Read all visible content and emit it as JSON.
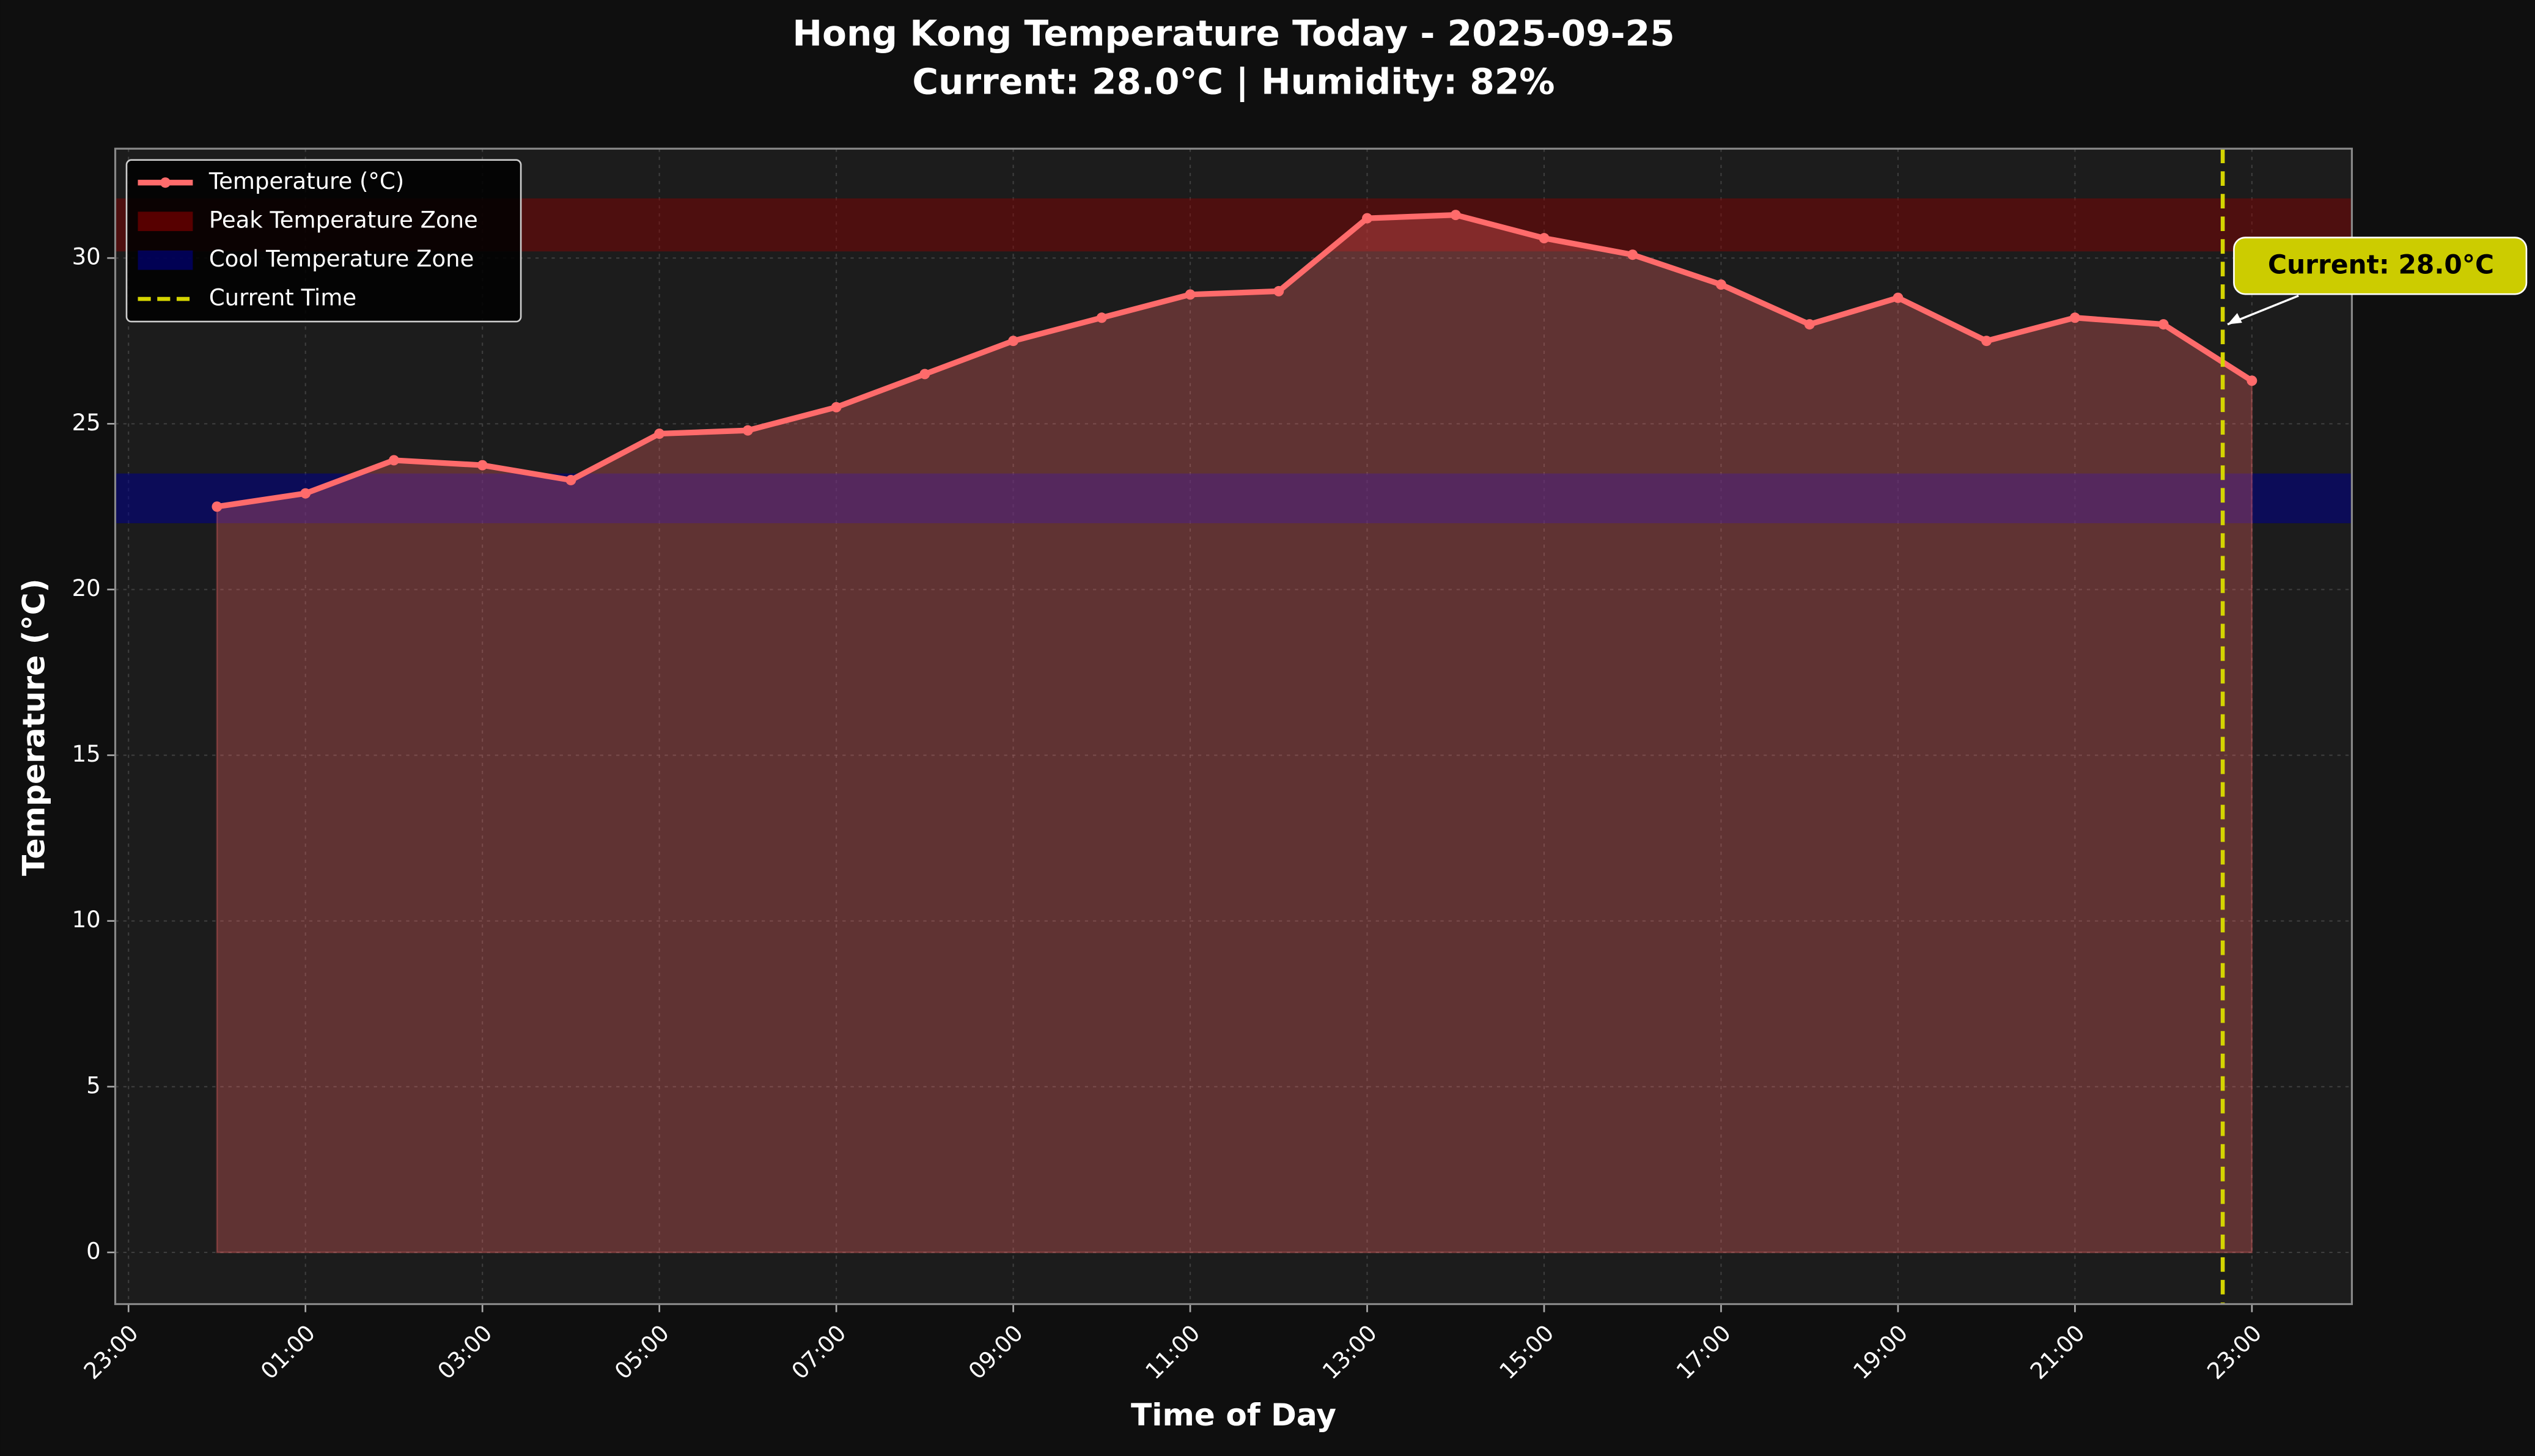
{
  "chart_data": {
    "type": "line",
    "title": "Hong Kong Temperature Today - 2025-09-25",
    "subtitle": "Current: 28.0°C | Humidity: 82%",
    "x_label": "Time of Day",
    "y_label": "Temperature (°C)",
    "x": [
      0,
      1,
      2,
      3,
      4,
      5,
      6,
      7,
      8,
      9,
      10,
      11,
      12,
      13,
      14,
      15,
      16,
      17,
      18,
      19,
      20,
      21,
      22,
      23
    ],
    "series": [
      {
        "name": "Temperature (°C)",
        "color": "#ff6b6b",
        "values": [
          22.5,
          22.9,
          23.9,
          23.75,
          23.3,
          24.7,
          24.8,
          25.5,
          26.5,
          27.5,
          28.2,
          28.9,
          29.0,
          31.2,
          31.3,
          30.6,
          30.1,
          29.2,
          28.0,
          28.8,
          27.5,
          28.2,
          28.0,
          26.3
        ]
      }
    ],
    "bands": [
      {
        "name": "Peak Temperature Zone",
        "color": "#8b0000",
        "range": [
          30.2,
          31.8
        ]
      },
      {
        "name": "Cool Temperature Zone",
        "color": "#00008b",
        "range": [
          22.0,
          23.5
        ]
      }
    ],
    "current_time": {
      "name": "Current Time",
      "color": "#d4d400",
      "x": 22.67
    },
    "annotation": {
      "text": "Current: 28.0°C",
      "x": 22.67,
      "y": 28.0
    },
    "xlim": [
      -1.15,
      24.13
    ],
    "ylim": [
      -1.56,
      33.3
    ],
    "xticks": [
      {
        "value": -1,
        "label": "23:00"
      },
      {
        "value": 1,
        "label": "01:00"
      },
      {
        "value": 3,
        "label": "03:00"
      },
      {
        "value": 5,
        "label": "05:00"
      },
      {
        "value": 7,
        "label": "07:00"
      },
      {
        "value": 9,
        "label": "09:00"
      },
      {
        "value": 11,
        "label": "11:00"
      },
      {
        "value": 13,
        "label": "13:00"
      },
      {
        "value": 15,
        "label": "15:00"
      },
      {
        "value": 17,
        "label": "17:00"
      },
      {
        "value": 19,
        "label": "19:00"
      },
      {
        "value": 21,
        "label": "21:00"
      },
      {
        "value": 23,
        "label": "23:00"
      }
    ],
    "yticks": [
      0,
      5,
      10,
      15,
      20,
      25,
      30
    ],
    "grid": true,
    "legend": "upper left",
    "fill_area": true
  }
}
